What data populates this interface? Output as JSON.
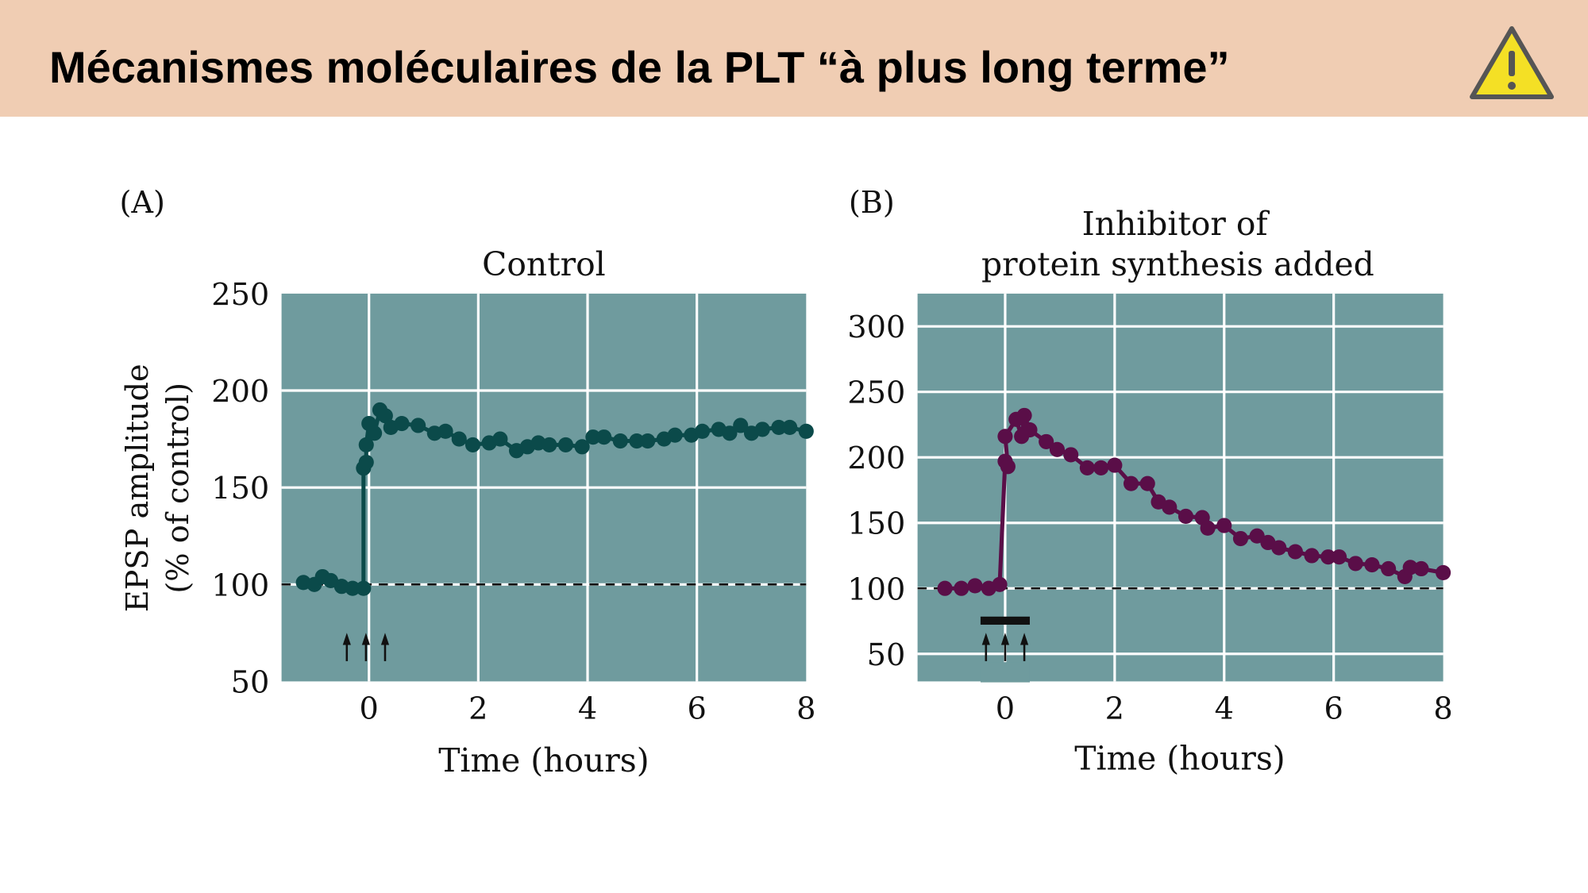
{
  "header": {
    "title": "Mécanismes moléculaires de la PLT “à plus long terme”",
    "icon": "warning-icon",
    "background": "#F0CDB3"
  },
  "chart_data": [
    {
      "type": "line",
      "panel": "(A)",
      "title": "Control",
      "xlabel": "Time (hours)",
      "ylabel": "EPSP amplitude",
      "ylabel2": "(% of control)",
      "xlim": [
        -1.6,
        8
      ],
      "ylim": [
        50,
        250
      ],
      "xticks": [
        "0",
        "2",
        "4",
        "6",
        "8"
      ],
      "yticks": [
        "250",
        "200",
        "150",
        "100",
        "50"
      ],
      "grid": true,
      "baseline": 100,
      "stimulus": "3 arrows near time 0",
      "color": "#0B4A4A",
      "background": "#6F9B9E",
      "x": [
        -1.2,
        -1.0,
        -0.85,
        -0.7,
        -0.5,
        -0.3,
        -0.1,
        -0.1,
        -0.05,
        -0.05,
        0.0,
        0.1,
        0.2,
        0.3,
        0.4,
        0.6,
        0.9,
        1.2,
        1.4,
        1.65,
        1.9,
        2.2,
        2.4,
        2.7,
        2.9,
        3.1,
        3.3,
        3.6,
        3.9,
        4.1,
        4.3,
        4.6,
        4.9,
        5.1,
        5.4,
        5.6,
        5.9,
        6.1,
        6.4,
        6.6,
        6.8,
        7.0,
        7.2,
        7.5,
        7.7,
        8.0
      ],
      "y": [
        101,
        100,
        104,
        102,
        99,
        98,
        98,
        160,
        163,
        172,
        183,
        178,
        190,
        187,
        181,
        183,
        182,
        178,
        179,
        175,
        172,
        173,
        175,
        169,
        171,
        173,
        172,
        172,
        171,
        176,
        176,
        174,
        174,
        174,
        175,
        177,
        177,
        179,
        180,
        178,
        182,
        178,
        180,
        181,
        181,
        179
      ]
    },
    {
      "type": "line",
      "panel": "(B)",
      "title": "Inhibitor of",
      "title2": "protein synthesis added",
      "xlabel": "Time (hours)",
      "xlim": [
        -1.6,
        8
      ],
      "ylim": [
        29,
        325
      ],
      "xticks": [
        "0",
        "2",
        "4",
        "6",
        "8"
      ],
      "yticks": [
        "300",
        "250",
        "200",
        "150",
        "100",
        "50"
      ],
      "grid": true,
      "baseline": 100,
      "stimulus": "3 arrows near time 0 with inhibitor bar",
      "color": "#5A0E48",
      "background": "#6F9B9E",
      "x": [
        -1.1,
        -0.8,
        -0.55,
        -0.3,
        -0.1,
        0.0,
        0.05,
        0.0,
        0.2,
        0.3,
        0.35,
        0.45,
        0.75,
        0.95,
        1.2,
        1.5,
        1.75,
        2.0,
        2.3,
        2.6,
        2.8,
        3.0,
        3.3,
        3.6,
        3.7,
        4.0,
        4.3,
        4.6,
        4.8,
        5.0,
        5.3,
        5.6,
        5.9,
        6.1,
        6.4,
        6.7,
        7.0,
        7.3,
        7.4,
        7.6,
        8.0
      ],
      "y": [
        100,
        100,
        102,
        100,
        103,
        197,
        193,
        216,
        229,
        216,
        232,
        221,
        212,
        206,
        202,
        192,
        192,
        194,
        180,
        180,
        166,
        162,
        155,
        154,
        146,
        148,
        138,
        140,
        135,
        131,
        128,
        125,
        124,
        124,
        119,
        118,
        115,
        109,
        116,
        115,
        112
      ]
    }
  ]
}
